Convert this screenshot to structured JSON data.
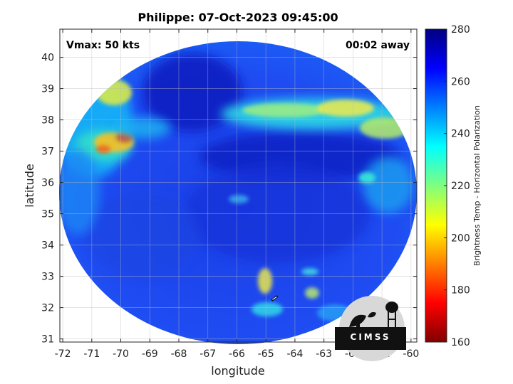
{
  "chart_data": {
    "type": "heatmap",
    "title": "Philippe: 07-Oct-2023 09:45:00",
    "xlabel": "longitude",
    "ylabel": "latitude",
    "xlim": [
      -72.1,
      -59.8
    ],
    "ylim": [
      30.9,
      40.9
    ],
    "x_ticks": [
      "-72",
      "-71",
      "-70",
      "-69",
      "-68",
      "-67",
      "-66",
      "-65",
      "-64",
      "-63",
      "-62",
      "-61",
      "-60"
    ],
    "y_ticks": [
      "31",
      "32",
      "33",
      "34",
      "35",
      "36",
      "37",
      "38",
      "39",
      "40"
    ],
    "grid": true,
    "annotations": {
      "vmax": "Vmax: 50 kts",
      "time_offset": "00:02 away"
    },
    "colorbar": {
      "label": "Brightness Temp - Horizontal Polarization",
      "range": [
        160,
        280
      ],
      "ticks": [
        "280",
        "260",
        "240",
        "220",
        "200",
        "180",
        "160"
      ],
      "colormap": "jet"
    },
    "features": [
      {
        "desc": "warm band",
        "lon": -70.2,
        "lat": 37.2,
        "value": 195
      },
      {
        "desc": "warm band",
        "lon": -70.8,
        "lat": 38.6,
        "value": 212
      },
      {
        "desc": "warm band",
        "lon": -64.0,
        "lat": 38.0,
        "value": 225
      },
      {
        "desc": "warm band",
        "lon": -62.0,
        "lat": 37.9,
        "value": 215
      },
      {
        "desc": "cold core",
        "lon": -65.0,
        "lat": 35.5,
        "value": 268
      },
      {
        "desc": "cold area",
        "lon": -67.0,
        "lat": 39.0,
        "value": 272
      }
    ],
    "storm_center": {
      "lon": -64.7,
      "lat": 32.3
    }
  },
  "logo": {
    "text": "CIMSS",
    "colors": {
      "ground": "#111111",
      "light": "#d8d8d8"
    }
  }
}
